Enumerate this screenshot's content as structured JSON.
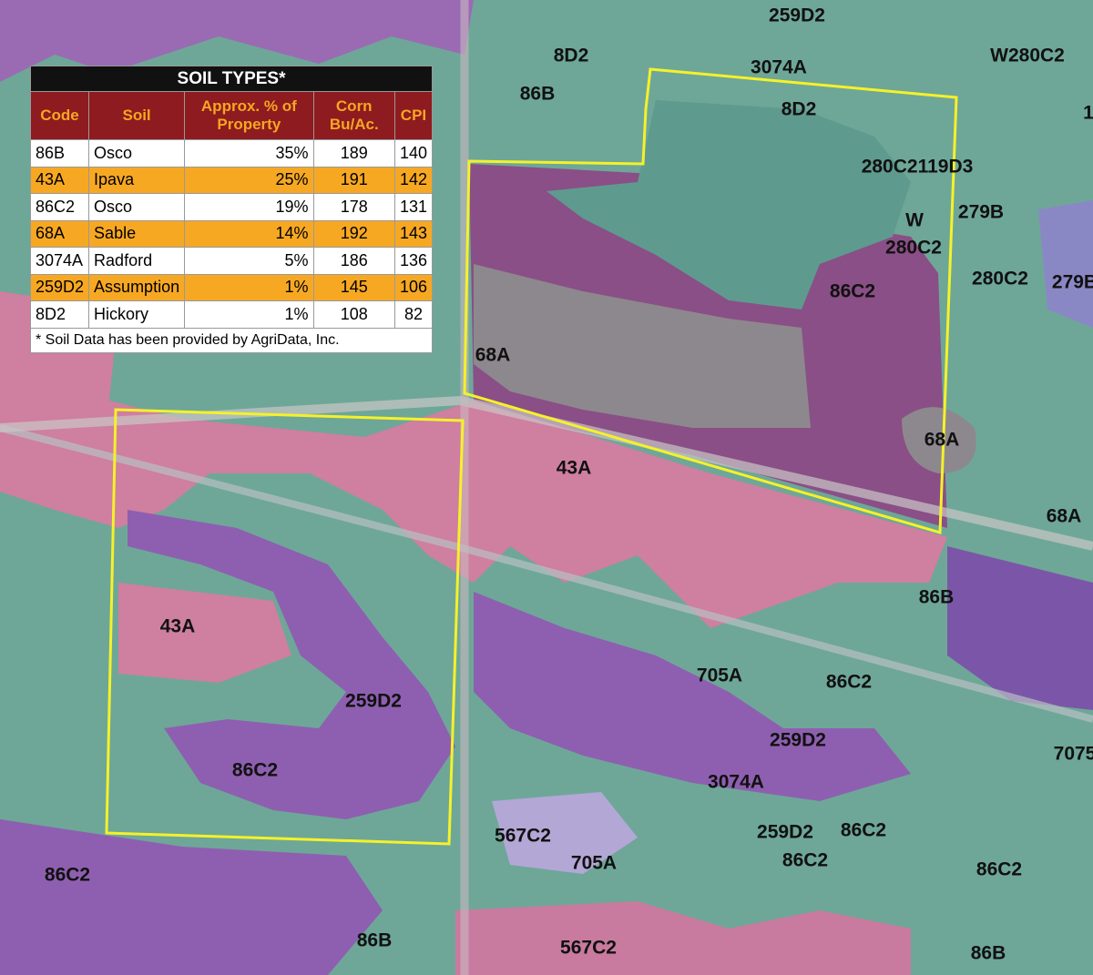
{
  "table": {
    "title": "SOIL TYPES*",
    "headers": [
      "Code",
      "Soil",
      "Approx. % of Property",
      "Corn Bu/Ac.",
      "CPI"
    ],
    "rows": [
      [
        "86B",
        "Osco",
        "35%",
        "189",
        "140"
      ],
      [
        "43A",
        "Ipava",
        "25%",
        "191",
        "142"
      ],
      [
        "86C2",
        "Osco",
        "19%",
        "178",
        "131"
      ],
      [
        "68A",
        "Sable",
        "14%",
        "192",
        "143"
      ],
      [
        "3074A",
        "Radford",
        "5%",
        "186",
        "136"
      ],
      [
        "259D2",
        "Assumption",
        "1%",
        "145",
        "106"
      ],
      [
        "8D2",
        "Hickory",
        "1%",
        "108",
        "82"
      ]
    ],
    "footnote": "* Soil Data has been provided by AgriData, Inc."
  },
  "map_labels": [
    "259D2",
    "8D2",
    "3074A",
    "W280C2",
    "86B",
    "8D2",
    "280C2119D3",
    "W",
    "279B",
    "280C2",
    "280C2",
    "279B",
    "86C2",
    "68A",
    "68A",
    "43A",
    "68A",
    "86B",
    "43A",
    "705A",
    "86C2",
    "259D2",
    "259D2",
    "7075",
    "86C2",
    "3074A",
    "259D2",
    "86C2",
    "567C2",
    "705A",
    "86C2",
    "86C2",
    "86C2",
    "86B",
    "567C2",
    "86B",
    "1"
  ]
}
